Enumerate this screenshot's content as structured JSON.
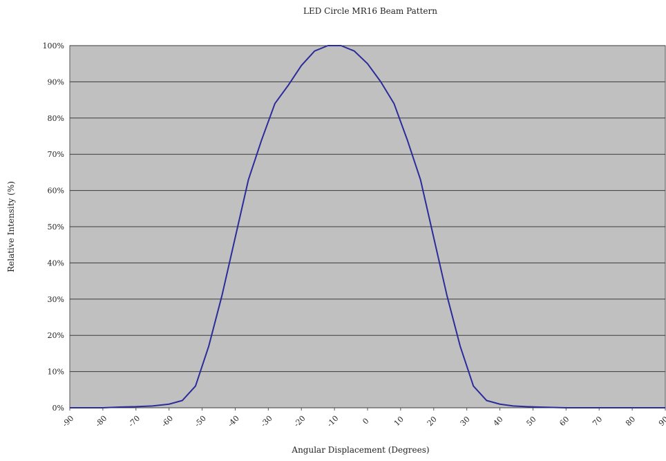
{
  "chart_data": {
    "type": "line",
    "title": "LED Circle MR16 Beam Pattern",
    "xlabel": "Angular Displacement (Degrees)",
    "ylabel": "Relative Intensity (%)",
    "x_tick_labels": [
      "-90",
      "-80",
      "-70",
      "-60",
      "-50",
      "-40",
      "-30",
      "-20",
      "-10",
      "0",
      "10",
      "20",
      "30",
      "40",
      "50",
      "60",
      "70",
      "80",
      "90"
    ],
    "y_tick_labels": [
      "0%",
      "10%",
      "20%",
      "30%",
      "40%",
      "50%",
      "60%",
      "70%",
      "80%",
      "90%",
      "100%"
    ],
    "xlim": [
      -90,
      90
    ],
    "ylim": [
      0,
      100
    ],
    "grid": "horizontal",
    "plot_background": "#c0c0c0",
    "line_color": "#2b2b9a",
    "series": [
      {
        "x": [
          -90,
          -85,
          -80,
          -75,
          -70,
          -65,
          -60,
          -56,
          -52,
          -48,
          -44,
          -40,
          -36,
          -32,
          -28,
          -24,
          -20,
          -16,
          -12,
          -8,
          -4,
          0,
          4,
          8,
          12,
          16,
          20,
          24,
          28,
          32,
          36,
          40,
          44,
          48,
          52,
          56,
          60,
          65,
          70,
          75,
          80,
          85,
          90
        ],
        "values": [
          0,
          0,
          0,
          0.2,
          0.3,
          0.5,
          1,
          2,
          6,
          17,
          31,
          47,
          63,
          74,
          84,
          89,
          94.5,
          98.5,
          100,
          100,
          98.5,
          95,
          90,
          84,
          74,
          63,
          47,
          31,
          17,
          6,
          2,
          1,
          0.5,
          0.3,
          0.2,
          0.1,
          0,
          0,
          0,
          0,
          0,
          0,
          0
        ]
      }
    ]
  }
}
